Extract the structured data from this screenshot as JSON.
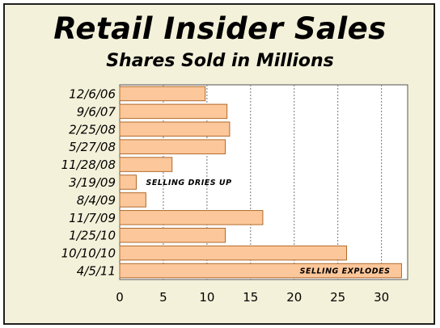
{
  "chart_data": {
    "type": "bar",
    "orientation": "horizontal",
    "title": "Retail Insider Sales",
    "subtitle": "Shares Sold in Millions",
    "categories": [
      "12/6/06",
      "9/6/07",
      "2/25/08",
      "5/27/08",
      "11/28/08",
      "3/19/09",
      "8/4/09",
      "11/7/09",
      "1/25/10",
      "10/10/10",
      "4/5/11"
    ],
    "values": [
      9.8,
      12.3,
      12.6,
      12.1,
      6.0,
      1.9,
      3.0,
      16.4,
      12.1,
      26.0,
      32.3
    ],
    "xlim": [
      0,
      33
    ],
    "xticks": [
      0,
      5,
      10,
      15,
      20,
      25,
      30
    ],
    "grid": "vertical dotted",
    "annotations": [
      {
        "text": "SELLING DRIES UP",
        "category": "3/19/09"
      },
      {
        "text": "SELLING EXPLODES",
        "category": "4/5/11"
      }
    ],
    "colors": {
      "bar_fill": "#fcc79a",
      "bar_edge": "#b06a2c",
      "plot_bg": "#ffffff",
      "frame_bg": "#f4f1da"
    }
  }
}
